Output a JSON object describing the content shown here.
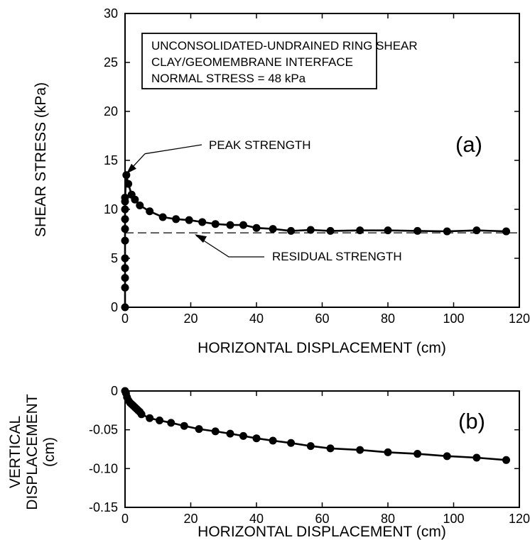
{
  "chart_data": [
    {
      "type": "scatter",
      "panel_label": "(a)",
      "ylabel": "SHEAR STRESS (kPa)",
      "xlabel": "HORIZONTAL DISPLACEMENT (cm)",
      "xlim": [
        0,
        120
      ],
      "ylim": [
        0,
        30
      ],
      "xticks": [
        "0",
        "20",
        "40",
        "60",
        "80",
        "100",
        "120"
      ],
      "yticks": [
        "0",
        "5",
        "10",
        "15",
        "20",
        "25",
        "30"
      ],
      "box_lines": [
        "UNCONSOLIDATED-UNDRAINED RING SHEAR",
        "CLAY/GEOMEMBRANE INTERFACE",
        "NORMAL STRESS = 48 kPa"
      ],
      "annotations": {
        "peak": "PEAK STRENGTH",
        "residual": "RESIDUAL STRENGTH"
      },
      "peak_point": [
        0,
        13.5
      ],
      "residual_value": 7.6,
      "series": [
        {
          "x": [
            0,
            0,
            0,
            0,
            0,
            0,
            0,
            0,
            0,
            0,
            0,
            0.4,
            1.0,
            2.0,
            3.0,
            4.5,
            7.5,
            11.5,
            15.5,
            19.5,
            23.5,
            27.5,
            32.0,
            36.0,
            40.0,
            45.0,
            50.5,
            56.5,
            62.5,
            71.5,
            80.0,
            89.0,
            98.0,
            107.0,
            116.0
          ],
          "y": [
            0,
            2.0,
            3.0,
            4.0,
            5.0,
            6.8,
            8.0,
            9.0,
            10.0,
            10.8,
            11.2,
            13.5,
            12.6,
            11.5,
            11.0,
            10.4,
            9.8,
            9.2,
            9.0,
            8.9,
            8.7,
            8.5,
            8.4,
            8.4,
            8.1,
            8.0,
            7.8,
            7.9,
            7.8,
            7.85,
            7.85,
            7.8,
            7.75,
            7.85,
            7.75
          ]
        }
      ]
    },
    {
      "type": "line",
      "panel_label": "(b)",
      "ylabel_lines": [
        "VERTICAL",
        "DISPLACEMENT",
        "(cm)"
      ],
      "xlabel": "HORIZONTAL DISPLACEMENT (cm)",
      "xlim": [
        0,
        120
      ],
      "ylim": [
        -0.15,
        0
      ],
      "xticks": [
        "0",
        "20",
        "40",
        "60",
        "80",
        "100",
        "120"
      ],
      "yticks": [
        "0",
        "-0.05",
        "-0.10",
        "-0.15"
      ],
      "series": [
        {
          "x": [
            0,
            0.3,
            0.6,
            1.0,
            1.5,
            2.0,
            2.5,
            3.0,
            3.5,
            4.0,
            4.5,
            5.0,
            7.5,
            10.5,
            14.0,
            18.0,
            22.5,
            27.5,
            32.0,
            36.0,
            40.0,
            45.0,
            50.5,
            56.5,
            62.5,
            71.5,
            80.0,
            89.0,
            98.0,
            107.0,
            116.0
          ],
          "y": [
            0,
            -0.003,
            -0.008,
            -0.012,
            -0.015,
            -0.017,
            -0.019,
            -0.021,
            -0.023,
            -0.025,
            -0.027,
            -0.03,
            -0.035,
            -0.038,
            -0.041,
            -0.045,
            -0.049,
            -0.052,
            -0.055,
            -0.058,
            -0.061,
            -0.064,
            -0.067,
            -0.071,
            -0.074,
            -0.076,
            -0.079,
            -0.081,
            -0.084,
            -0.086,
            -0.089
          ]
        }
      ]
    }
  ]
}
